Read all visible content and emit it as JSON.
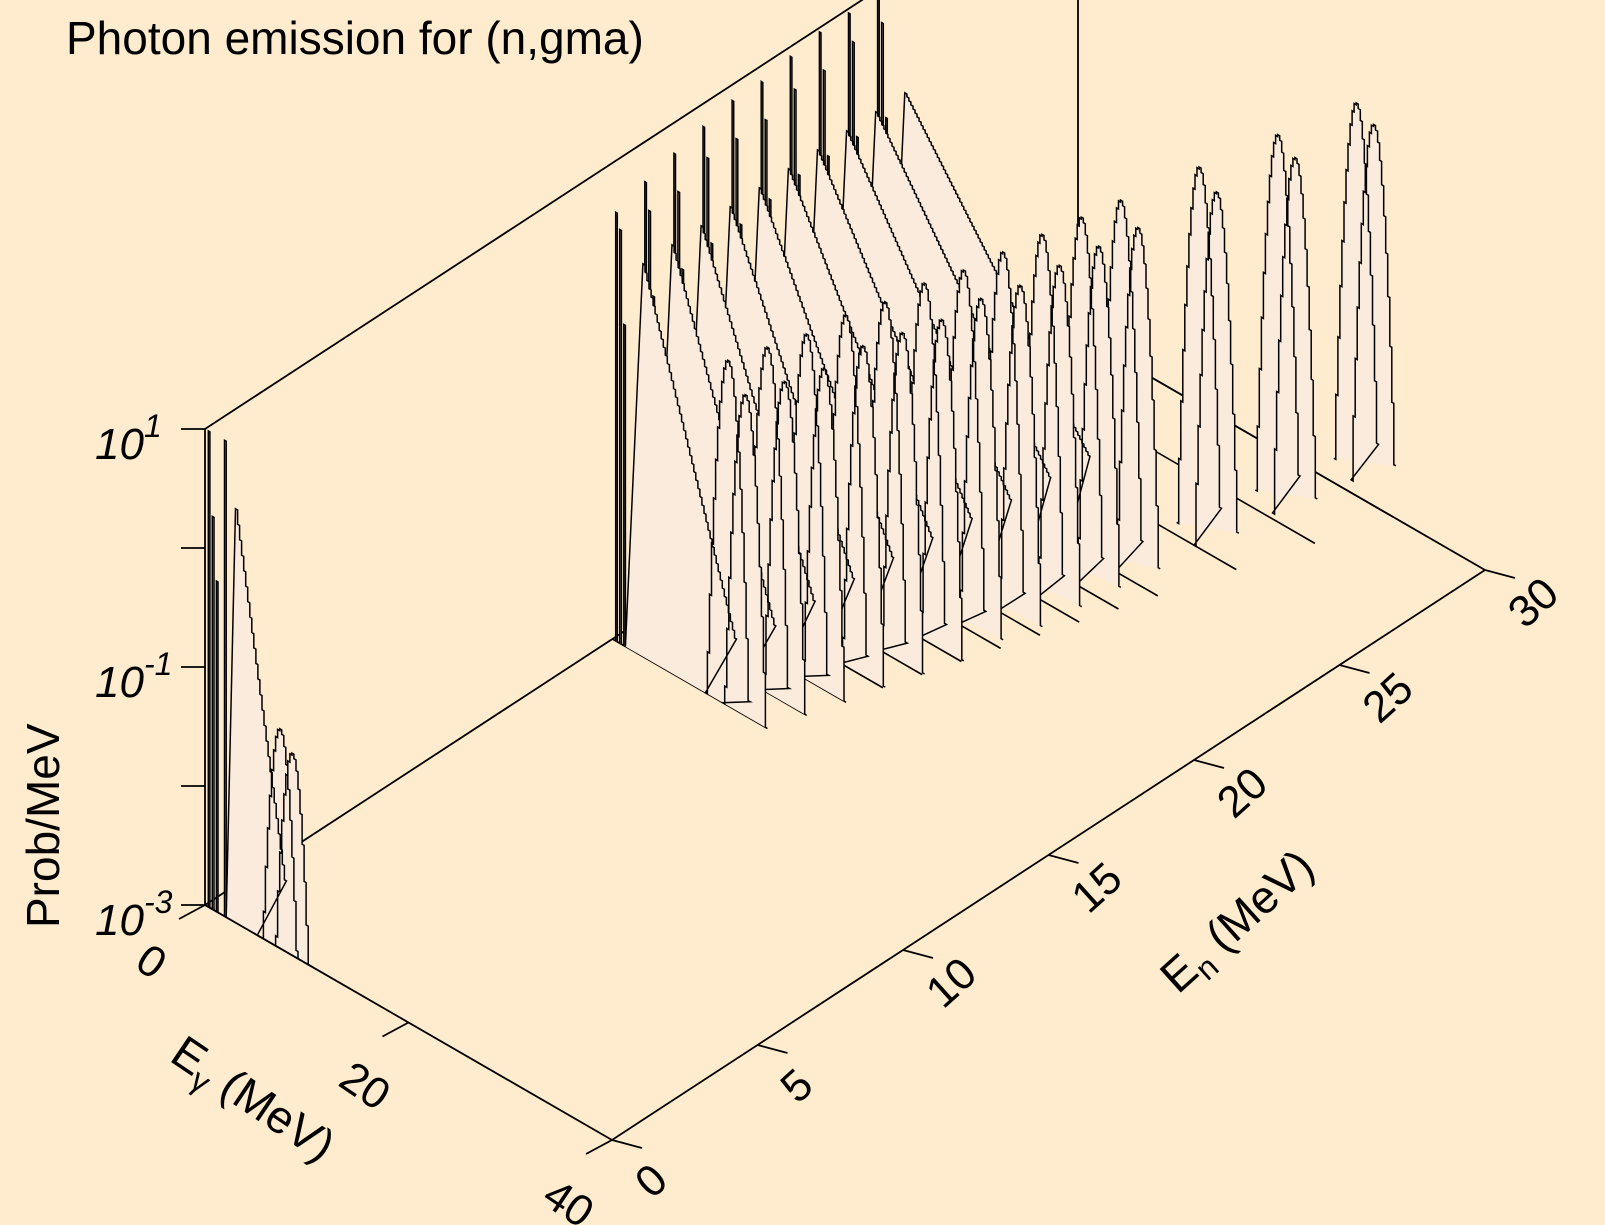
{
  "chart_data": {
    "type": "waterfall-3d",
    "title": "Photon emission for (n,gma)",
    "zlabel": "Prob/MeV",
    "zscale": "log",
    "zlim": [
      0.001,
      10
    ],
    "z_ticks": [
      {
        "base": "10",
        "exp": "1",
        "value": 10
      },
      {
        "base": "10",
        "exp": "-1",
        "value": 0.1
      },
      {
        "base": "10",
        "exp": "-3",
        "value": 0.001
      }
    ],
    "xlabel": "Eγ (MeV)",
    "xlabel_main": "E",
    "xlabel_sub": "γ",
    "xlabel_rest": " (MeV)",
    "xlim": [
      0,
      40
    ],
    "x_ticks": [
      "0",
      "20",
      "40"
    ],
    "ylabel": "En (MeV)",
    "ylabel_main": "E",
    "ylabel_sub": "n",
    "ylabel_rest": " (MeV)",
    "ylim": [
      0,
      30
    ],
    "y_ticks": [
      "0",
      "5",
      "10",
      "15",
      "20",
      "25",
      "30"
    ],
    "series": [
      {
        "En": 0.0,
        "lines": [
          [
            0.4,
            10
          ],
          [
            0.8,
            2
          ],
          [
            1.2,
            0.6
          ],
          [
            2.0,
            10
          ]
        ],
        "cont_low": 3,
        "cont_high": 8,
        "tail_peak": 3.0,
        "tail_end": 0.003,
        "peaks": [
          [
            7.3,
            0.07
          ],
          [
            8.5,
            0.05
          ]
        ]
      },
      {
        "En": 14.0,
        "lines": [
          [
            0.4,
            4
          ],
          [
            0.8,
            3
          ],
          [
            1.2,
            0.5
          ]
        ],
        "cont_low": 3,
        "cont_high": 12,
        "tail_peak": 2.0,
        "tail_end": 0.004,
        "peaks": [
          [
            11.3,
            0.8
          ],
          [
            13.0,
            0.5
          ]
        ]
      },
      {
        "En": 15.0,
        "lines": [
          [
            0.4,
            5
          ],
          [
            0.8,
            3
          ],
          [
            1.2,
            0.6
          ]
        ],
        "cont_low": 3,
        "cont_high": 13,
        "tail_peak": 2.0,
        "tail_end": 0.004,
        "peaks": [
          [
            12.3,
            0.8
          ],
          [
            14.0,
            0.5
          ]
        ]
      },
      {
        "En": 16.0,
        "lines": [
          [
            0.4,
            6
          ],
          [
            0.8,
            3
          ],
          [
            1.2,
            0.7
          ]
        ],
        "cont_low": 3,
        "cont_high": 14,
        "tail_peak": 2.0,
        "tail_end": 0.005,
        "peaks": [
          [
            13.3,
            0.8
          ],
          [
            15.0,
            0.5
          ]
        ]
      },
      {
        "En": 17.0,
        "lines": [
          [
            0.4,
            7
          ],
          [
            0.8,
            4
          ],
          [
            1.2,
            0.8
          ]
        ],
        "cont_low": 3,
        "cont_high": 15,
        "tail_peak": 2.0,
        "tail_end": 0.006,
        "peaks": [
          [
            14.3,
            0.9
          ],
          [
            16.0,
            0.6
          ]
        ]
      },
      {
        "En": 18.0,
        "lines": [
          [
            0.4,
            8
          ],
          [
            0.8,
            4
          ],
          [
            1.2,
            0.8
          ]
        ],
        "cont_low": 3,
        "cont_high": 16,
        "tail_peak": 2.0,
        "tail_end": 0.007,
        "peaks": [
          [
            15.3,
            0.9
          ],
          [
            17.0,
            0.6
          ]
        ]
      },
      {
        "En": 19.0,
        "lines": [
          [
            0.4,
            8
          ],
          [
            0.8,
            4
          ],
          [
            1.2,
            0.9
          ]
        ],
        "cont_low": 3,
        "cont_high": 17,
        "tail_peak": 2.0,
        "tail_end": 0.008,
        "peaks": [
          [
            16.3,
            1.0
          ],
          [
            18.0,
            0.6
          ]
        ]
      },
      {
        "En": 20.0,
        "lines": [
          [
            0.4,
            9
          ],
          [
            0.8,
            5
          ],
          [
            1.2,
            1.0
          ]
        ],
        "cont_low": 3,
        "cont_high": 18,
        "tail_peak": 2.0,
        "tail_end": 0.009,
        "peaks": [
          [
            17.3,
            1.0
          ],
          [
            19.0,
            0.7
          ]
        ]
      },
      {
        "En": 21.0,
        "lines": [
          [
            0.4,
            10
          ],
          [
            0.8,
            5
          ],
          [
            1.2,
            1.0
          ]
        ],
        "cont_low": 3,
        "cont_high": 19,
        "tail_peak": 2.0,
        "tail_end": 0.01,
        "peaks": [
          [
            18.3,
            1.1
          ],
          [
            20.0,
            0.7
          ]
        ]
      },
      {
        "En": 22.0,
        "lines": [
          [
            0.4,
            10
          ],
          [
            0.8,
            6
          ],
          [
            1.2,
            1.0
          ]
        ],
        "cont_low": 3,
        "cont_high": 20,
        "tail_peak": 2.0,
        "tail_end": 0.012,
        "peaks": [
          [
            19.3,
            1.2
          ],
          [
            21.0,
            0.8
          ]
        ]
      },
      {
        "En": 23.0,
        "lines": [
          [
            0.4,
            10
          ],
          [
            0.8,
            6
          ],
          [
            1.2,
            1.0
          ]
        ],
        "cont_low": 3,
        "cont_high": 21,
        "tail_peak": 2.0,
        "tail_end": 0.014,
        "peaks": [
          [
            20.3,
            1.3
          ],
          [
            22.0,
            0.9
          ]
        ]
      },
      {
        "En": 24.0,
        "lines": [],
        "cont_low": 0,
        "cont_high": 0,
        "tail_peak": 0,
        "tail_end": 0,
        "peaks": [
          [
            21.3,
            1.4
          ],
          [
            23.0,
            1.0
          ]
        ]
      },
      {
        "En": 26.0,
        "lines": [],
        "cont_low": 0,
        "cont_high": 0,
        "tail_peak": 0,
        "tail_end": 0,
        "peaks": [
          [
            23.3,
            1.6
          ],
          [
            25.0,
            1.2
          ]
        ]
      },
      {
        "En": 28.0,
        "lines": [],
        "cont_low": 0,
        "cont_high": 0,
        "tail_peak": 0,
        "tail_end": 0,
        "peaks": [
          [
            25.3,
            1.8
          ],
          [
            27.0,
            1.4
          ]
        ]
      },
      {
        "En": 30.0,
        "lines": [],
        "cont_low": 0,
        "cont_high": 0,
        "tail_peak": 0,
        "tail_end": 0,
        "peaks": [
          [
            27.3,
            2.0
          ],
          [
            29.0,
            1.6
          ]
        ]
      }
    ],
    "colors": {
      "background": "#FFEBCD",
      "fill": "#FAEBDC",
      "line": "#000000"
    }
  }
}
